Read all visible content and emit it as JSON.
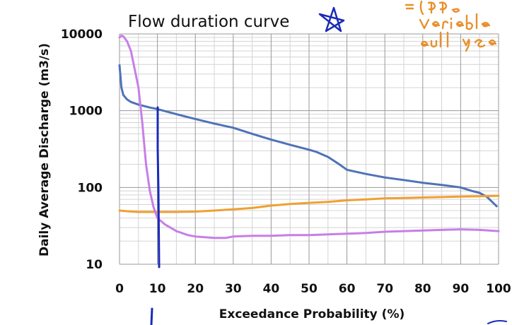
{
  "chart_data": {
    "type": "line",
    "title": "Flow duration curve",
    "xlabel": "Exceedance Probability (%)",
    "ylabel": "Daily Average Discharge (m3/s)",
    "yscale": "log",
    "xlim": [
      0,
      100
    ],
    "ylim": [
      10,
      10000
    ],
    "x_ticks": [
      "0",
      "10",
      "20",
      "30",
      "40",
      "50",
      "60",
      "70",
      "80",
      "90",
      "100"
    ],
    "y_ticks": [
      "10",
      "100",
      "1000",
      "10000"
    ],
    "grid": true,
    "colors": {
      "blue": "#4f72b8",
      "orange": "#f0a032",
      "purple": "#c77ee8",
      "ink": "#1a2bb8",
      "note": "#e8902a"
    },
    "series": [
      {
        "color": "#4f72b8",
        "x": [
          0,
          0.5,
          1,
          2,
          3,
          5,
          8,
          10,
          15,
          20,
          25,
          30,
          35,
          40,
          45,
          50,
          52,
          55,
          58,
          60,
          65,
          70,
          75,
          80,
          85,
          90,
          93,
          95,
          97,
          99.5
        ],
        "y": [
          3900,
          2000,
          1600,
          1400,
          1300,
          1200,
          1100,
          1050,
          900,
          780,
          680,
          600,
          500,
          420,
          360,
          310,
          290,
          250,
          200,
          170,
          150,
          135,
          125,
          115,
          108,
          100,
          90,
          85,
          75,
          57
        ]
      },
      {
        "color": "#f0a032",
        "x": [
          0,
          2,
          5,
          10,
          15,
          20,
          25,
          30,
          35,
          40,
          45,
          50,
          55,
          60,
          65,
          70,
          75,
          80,
          85,
          90,
          95,
          100
        ],
        "y": [
          50,
          49,
          48,
          48,
          48,
          48.5,
          50,
          52,
          54,
          58,
          61,
          63,
          65,
          68,
          70,
          72,
          73,
          74,
          75,
          76,
          77,
          78
        ]
      },
      {
        "color": "#c77ee8",
        "x": [
          0,
          0.5,
          1,
          2,
          3,
          4,
          5,
          6,
          7,
          8,
          9,
          10,
          12,
          15,
          18,
          20,
          25,
          28,
          30,
          35,
          40,
          45,
          50,
          55,
          60,
          65,
          70,
          75,
          80,
          85,
          90,
          95,
          100
        ],
        "y": [
          9000,
          9500,
          9300,
          8000,
          6000,
          3500,
          2000,
          700,
          200,
          90,
          55,
          40,
          33,
          27,
          24,
          23,
          22,
          22,
          23,
          23.5,
          23.5,
          24,
          24,
          24.5,
          25,
          25.5,
          26.5,
          27,
          27.5,
          28,
          28.5,
          28,
          27
        ]
      }
    ]
  }
}
